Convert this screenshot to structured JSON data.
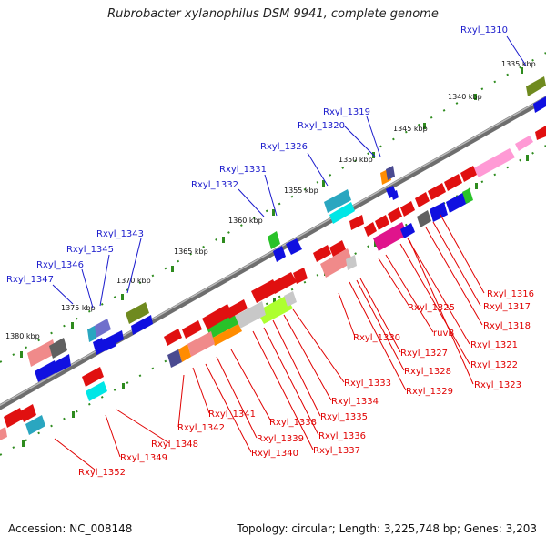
{
  "title": "Rubrobacter xylanophilus DSM 9941, complete genome",
  "footer": {
    "accession": "Accession: NC_008148",
    "topology": "Topology: circular; Length: 3,225,748 bp; Genes: 3,203"
  },
  "kbp_ticks": [
    "1335 kbp",
    "1340 kbp",
    "1345 kbp",
    "1350 kbp",
    "1355 kbp",
    "1360 kbp",
    "1365 kbp",
    "1370 kbp",
    "1375 kbp",
    "1380 kbp"
  ],
  "blue_labels": [
    "Rxyl_1310",
    "Rxyl_1319",
    "Rxyl_1320",
    "Rxyl_1326",
    "Rxyl_1331",
    "Rxyl_1332",
    "Rxyl_1343",
    "Rxyl_1345",
    "Rxyl_1346",
    "Rxyl_1347"
  ],
  "red_labels": [
    "Rxyl_1316",
    "Rxyl_1317",
    "Rxyl_1318",
    "Rxyl_1321",
    "Rxyl_1322",
    "Rxyl_1323",
    "Rxyl_1325",
    "ruvB",
    "Rxyl_1327",
    "Rxyl_1328",
    "Rxyl_1329",
    "Rxyl_1330",
    "Rxyl_1333",
    "Rxyl_1334",
    "Rxyl_1335",
    "Rxyl_1336",
    "Rxyl_1337",
    "Rxyl_1338",
    "Rxyl_1339",
    "Rxyl_1340",
    "Rxyl_1341",
    "Rxyl_1342",
    "Rxyl_1348",
    "Rxyl_1349",
    "Rxyl_1352"
  ],
  "colors": {
    "backbone": "#8a8a8a",
    "forward_strand_label": "#1a1acc",
    "reverse_strand_label": "#e00000",
    "tick": "#2e8b1e"
  }
}
